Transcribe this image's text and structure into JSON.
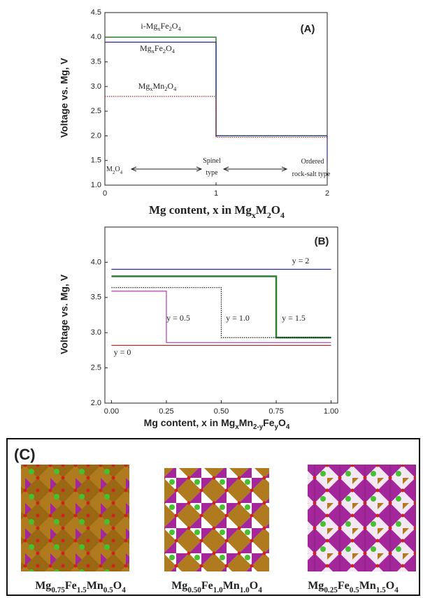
{
  "chart_data": [
    {
      "type": "line",
      "xlabel": "Mg content,  x in MgxM2O4",
      "ylabel": "Voltage vs. Mg, V",
      "xlim": [
        0,
        2
      ],
      "xticks": [
        0,
        1,
        2
      ],
      "ylim": [
        1.0,
        4.5
      ],
      "yticks": [
        {
          "value": 1.0,
          "label": "1.0"
        },
        {
          "value": 1.5,
          "label": "1.5"
        },
        {
          "value": 2.0,
          "label": "2.0"
        },
        {
          "value": 2.5,
          "label": "2.5"
        },
        {
          "value": 3.0,
          "label": "3.0"
        },
        {
          "value": 3.5,
          "label": "3.5"
        },
        {
          "value": 4.0,
          "label": "4.0"
        },
        4.5
      ],
      "series": [
        {
          "name": "i-MgxFe2O4",
          "color": "#2e7d32",
          "linestyle": "solid",
          "linewidth": 1.5,
          "x": [
            0,
            1,
            1,
            2
          ],
          "values": [
            4.0,
            4.0,
            2.0,
            2.0
          ]
        },
        {
          "name": "MgxFe2O4",
          "color": "#2b2b8c",
          "linestyle": "solid",
          "linewidth": 1.2,
          "x": [
            0,
            1,
            1,
            2,
            2
          ],
          "values": [
            3.9,
            3.9,
            2.0,
            2.0,
            1.45
          ]
        },
        {
          "name": "MgxMn2O4",
          "color": "#b03030",
          "linestyle": "dotted",
          "linewidth": 1.2,
          "x": [
            0,
            1,
            1,
            2
          ],
          "values": [
            2.8,
            2.8,
            1.97,
            1.97
          ]
        }
      ],
      "annotations": [
        "(A)",
        "M2O4",
        "Spinel",
        "type",
        "Ordered",
        "rock-salt type"
      ]
    },
    {
      "type": "line",
      "xlabel": "Mg content, x in MgxMn2-yFeyO4",
      "ylabel": "Voltage vs. Mg, V",
      "xlim": [
        -0.03,
        1.03
      ],
      "xticks": [
        {
          "value": 0,
          "label": "0.00"
        },
        {
          "value": 0.25,
          "label": "0.25"
        },
        {
          "value": 0.5,
          "label": "0.50"
        },
        {
          "value": 0.75,
          "label": "0.75"
        },
        {
          "value": 1,
          "label": "1.00"
        }
      ],
      "ylim": [
        2.0,
        4.5
      ],
      "yticks": [
        {
          "value": 2.0,
          "label": "2.0"
        },
        2.5,
        {
          "value": 3.0,
          "label": "3.0"
        },
        3.5,
        {
          "value": 4.0,
          "label": "4.0"
        }
      ],
      "series": [
        {
          "name": "y = 2",
          "color": "#2b2b8c",
          "linestyle": "solid",
          "linewidth": 1.2,
          "x": [
            0,
            1
          ],
          "values": [
            3.9,
            3.9
          ]
        },
        {
          "name": "y = 1.5",
          "color": "#2e7d32",
          "linestyle": "solid",
          "linewidth": 2.5,
          "x": [
            0,
            0.75,
            0.75,
            1
          ],
          "values": [
            3.8,
            3.8,
            2.93,
            2.93
          ]
        },
        {
          "name": "y = 1.0",
          "color": "#111111",
          "linestyle": "dotted",
          "linewidth": 1.2,
          "x": [
            0,
            0.5,
            0.5,
            1
          ],
          "values": [
            3.64,
            3.64,
            2.93,
            2.93
          ]
        },
        {
          "name": "y = 0.5",
          "color": "#b040b0",
          "linestyle": "solid",
          "linewidth": 1.2,
          "x": [
            0,
            0.25,
            0.25,
            1
          ],
          "values": [
            3.59,
            3.59,
            2.86,
            2.86
          ]
        },
        {
          "name": "y = 0",
          "color": "#b03030",
          "linestyle": "solid",
          "linewidth": 1.2,
          "x": [
            0,
            1
          ],
          "values": [
            2.82,
            2.82
          ]
        }
      ],
      "annotations": [
        "(B)"
      ]
    }
  ],
  "panel_c": {
    "label": "(C)",
    "captions": [
      "Mg0.75Fe1.5Mn0.5O4",
      "Mg0.50Fe1.0Mn1.0O4",
      "Mg0.25Fe0.5Mn1.5O4"
    ]
  }
}
